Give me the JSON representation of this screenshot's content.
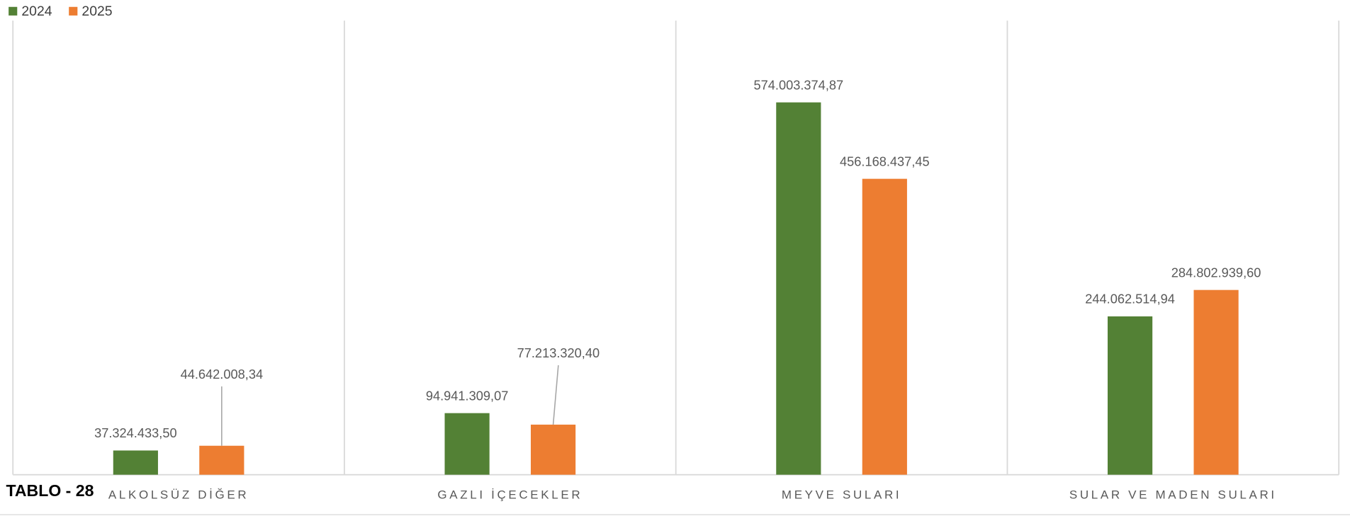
{
  "chart_data": {
    "type": "bar",
    "annotation": "TABLO - 28",
    "categories": [
      "ALKOLSÜZ DİĞER",
      "GAZLI İÇECEKLER",
      "MEYVE SULARI",
      "SULAR VE MADEN SULARI"
    ],
    "series": [
      {
        "name": "2024",
        "color": "#538135",
        "values": [
          37324433.5,
          94941309.07,
          574003374.87,
          244062514.94
        ],
        "value_labels": [
          "37.324.433,50",
          "94.941.309,07",
          "574.003.374,87",
          "244.062.514,94"
        ]
      },
      {
        "name": "2025",
        "color": "#ed7d31",
        "values": [
          44642008.34,
          77213320.4,
          456168437.45,
          284802939.6
        ],
        "value_labels": [
          "44.642.008,34",
          "77.213.320,40",
          "456.168.437,45",
          "284.802.939,60"
        ]
      }
    ],
    "ylim": [
      0,
      700000000
    ],
    "legend": "top-left"
  }
}
